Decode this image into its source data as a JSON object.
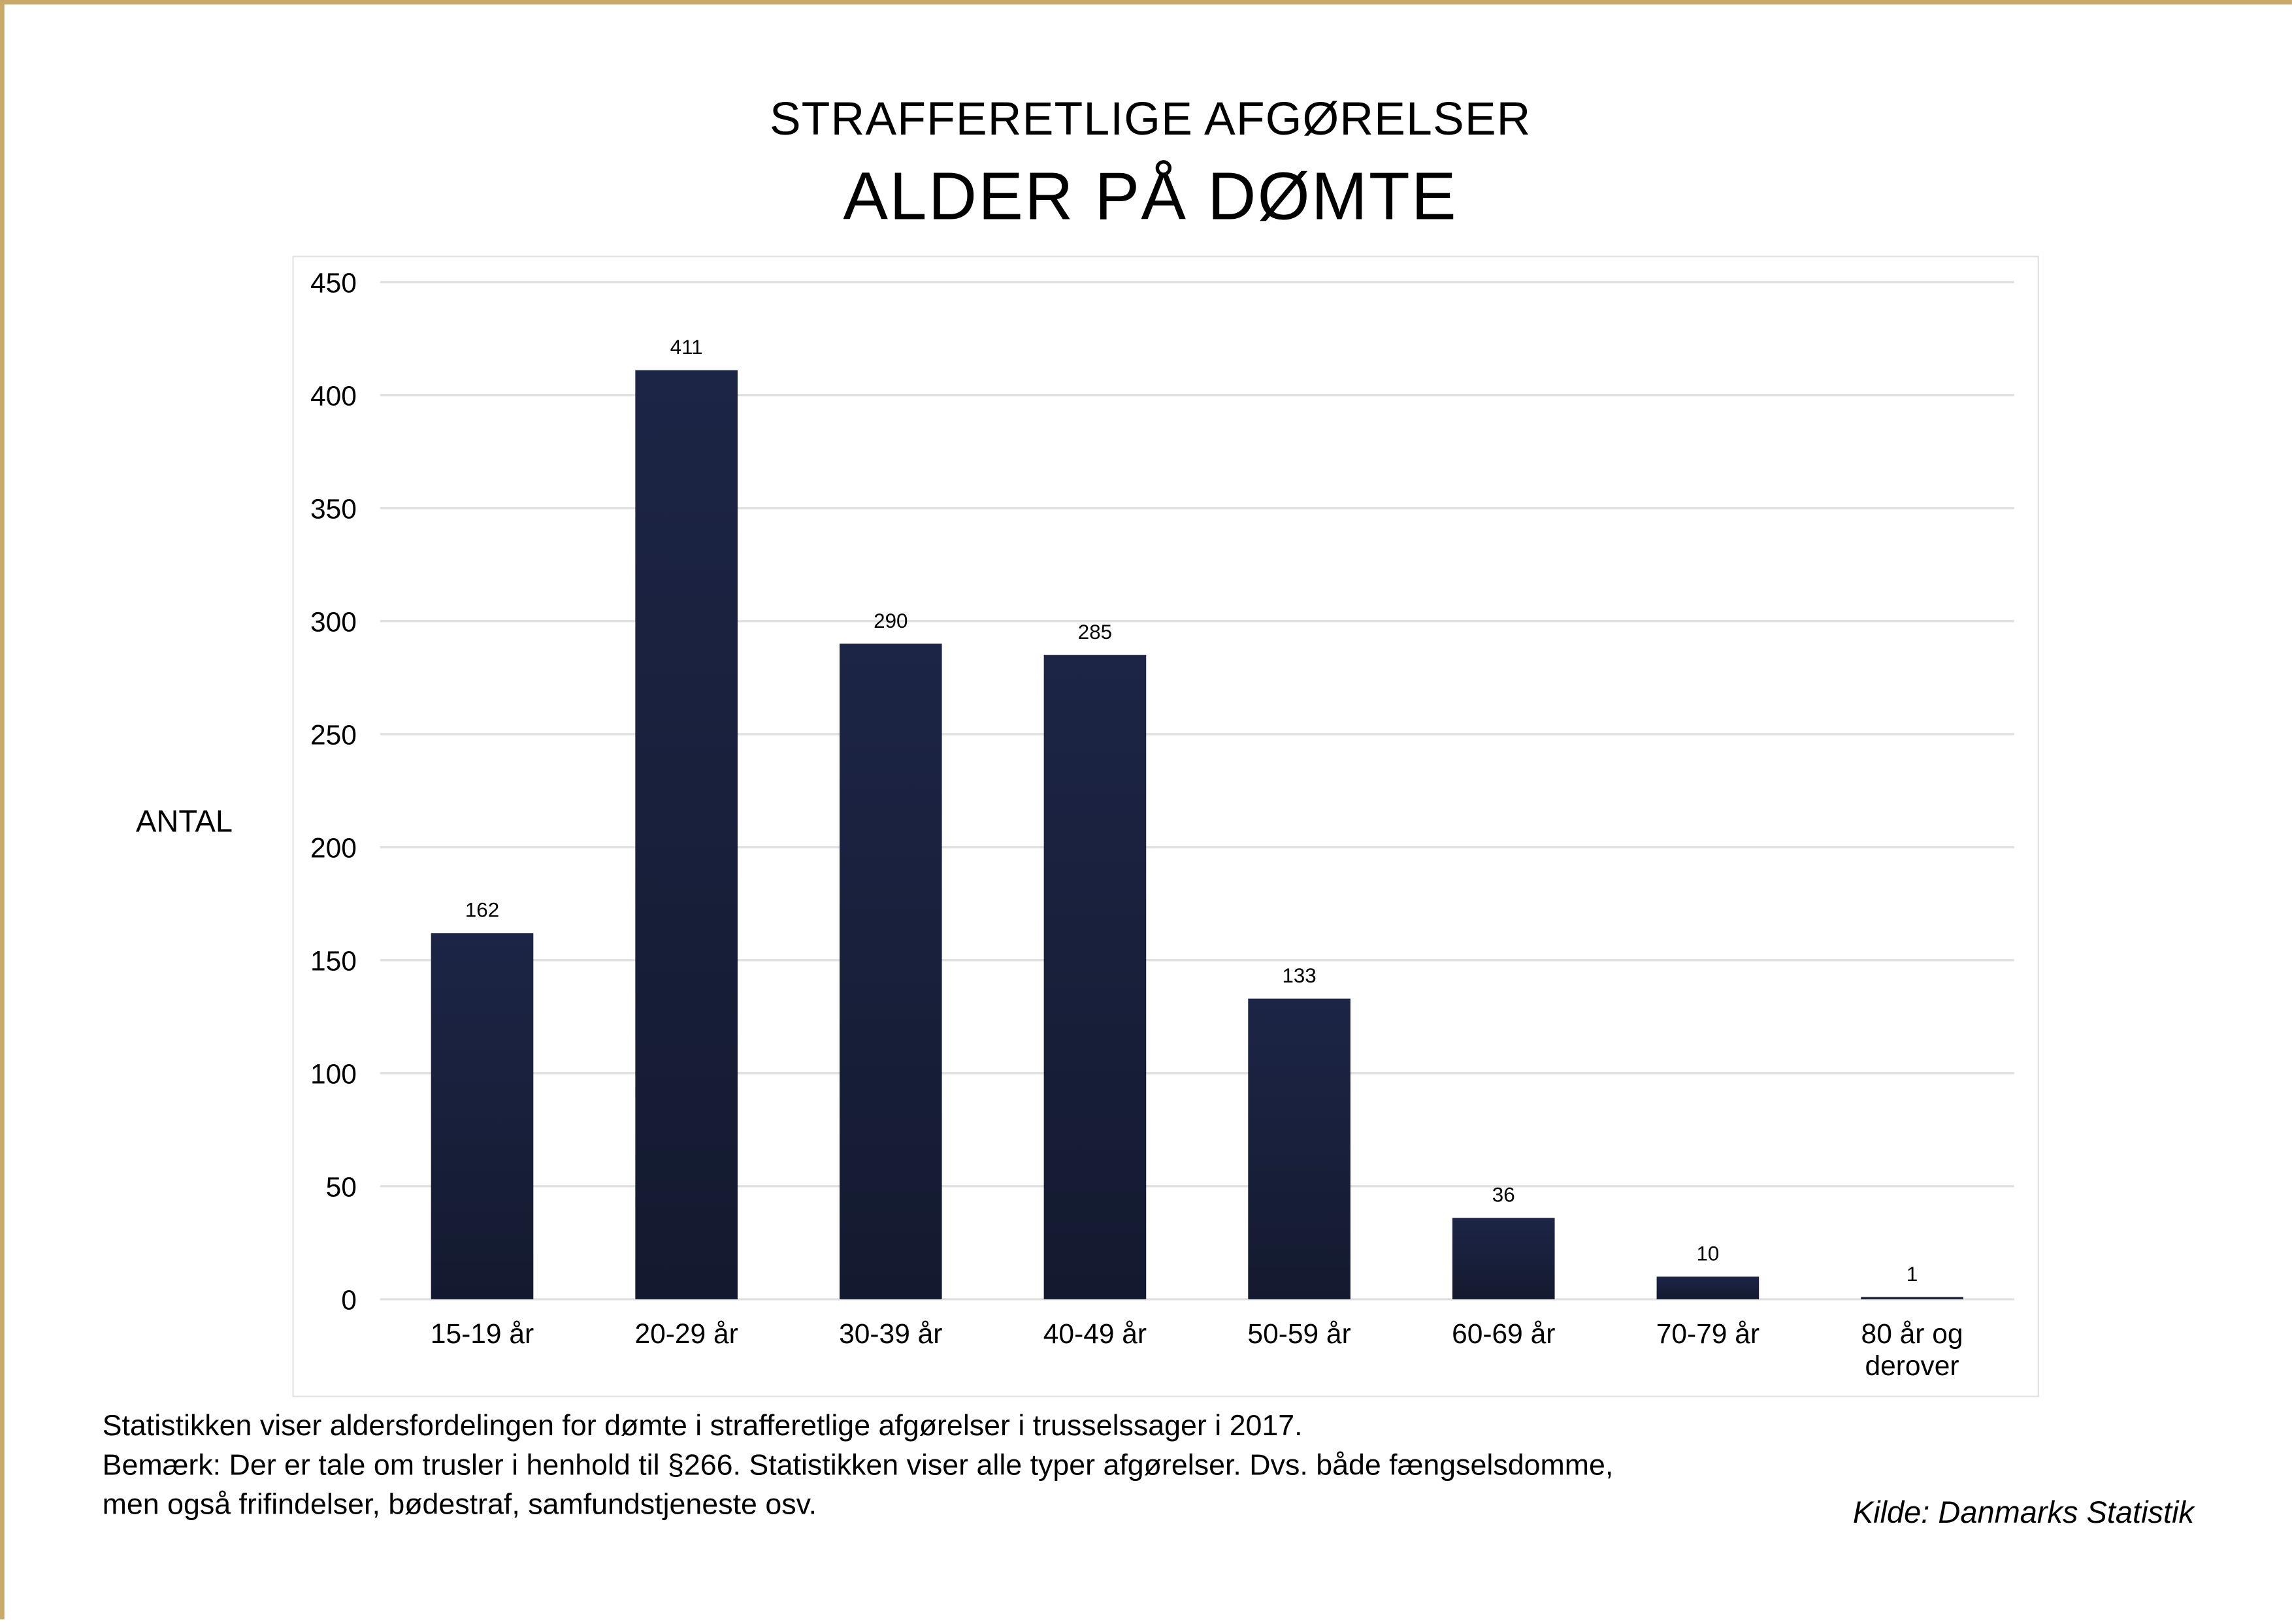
{
  "title": "STRAFFERETLIGE AFGØRELSER",
  "subtitle": "ALDER PÅ DØMTE",
  "chart_data": {
    "type": "bar",
    "title": "ALDER PÅ DØMTE",
    "xlabel": "",
    "ylabel": "ANTAL",
    "categories": [
      "15-19 år",
      "20-29 år",
      "30-39 år",
      "40-49 år",
      "50-59 år",
      "60-69 år",
      "70-79 år",
      "80 år og derover"
    ],
    "values": [
      162,
      411,
      290,
      285,
      133,
      36,
      10,
      1
    ],
    "ylim": [
      0,
      450
    ],
    "yticks": [
      0,
      50,
      100,
      150,
      200,
      250,
      300,
      350,
      400,
      450
    ],
    "grid": true,
    "data_labels": true,
    "bar_color": "#1a2240"
  },
  "notes": [
    "Statistikken viser aldersfordelingen for dømte i strafferetlige afgørelser i trusselssager i 2017.",
    "Bemærk: Der er tale om trusler i henhold til §266. Statistikken viser alle typer afgørelser. Dvs. både fængselsdomme,",
    "men også frifindelser, bødestraf, samfundstjeneste osv."
  ],
  "source": "Kilde: Danmarks Statistik",
  "colors": {
    "border": "#c8a96a",
    "grid": "#e0e0e0"
  }
}
